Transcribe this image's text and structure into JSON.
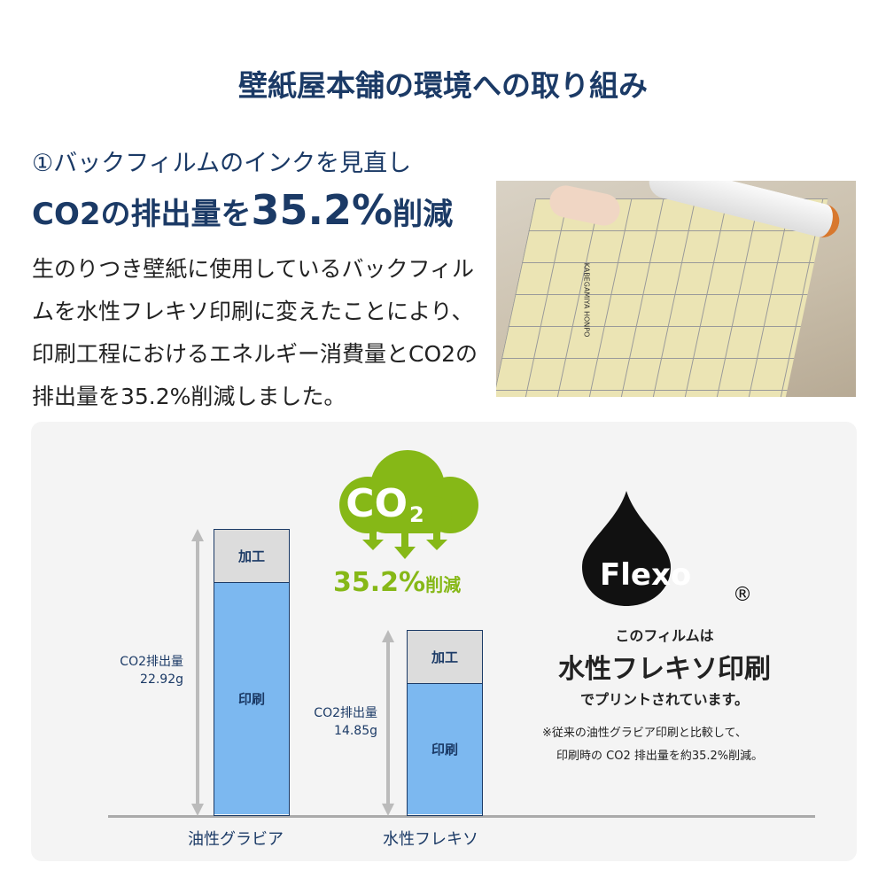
{
  "title": "壁紙屋本舗の環境への取り組み",
  "subtitle": "①バックフィルムのインクを見直し",
  "headline": {
    "pre": "CO2の排出量を",
    "value": "35.2%",
    "post": "削減"
  },
  "body": "生のりつき壁紙に使用しているバックフィルムを水性フレキソ印刷に変えたことにより、印刷工程におけるエネルギー消費量とCO2の排出量を35.2%削減しました。",
  "photo": {
    "print_text": "KABEGAMIYA HONPO"
  },
  "cloud": {
    "label": "CO",
    "sub": "2",
    "reduction": "35.2%",
    "reduction_suffix": "削減"
  },
  "chart_data": {
    "type": "bar",
    "categories": [
      "油性グラビア",
      "水性フレキソ"
    ],
    "values": [
      22.92,
      14.85
    ],
    "unit": "g",
    "value_labels": [
      "CO2排出量\n22.92g",
      "CO2排出量\n14.85g"
    ],
    "segments": [
      "印刷",
      "加工"
    ]
  },
  "labels": {
    "bar1_val_l1": "CO2排出量",
    "bar1_val_l2": "22.92g",
    "bar2_val_l1": "CO2排出量",
    "bar2_val_l2": "14.85g",
    "seg_top": "加工",
    "seg_bot": "印刷",
    "cat1": "油性グラビア",
    "cat2": "水性フレキソ"
  },
  "flexo": {
    "logo": "Flexo",
    "reg": "®",
    "line1": "このフィルムは",
    "line2": "水性フレキソ印刷",
    "line3": "でプリントされています。",
    "note1": "※従来の油性グラビア印刷と比較して、",
    "note2": "印刷時の CO2 排出量を約35.2%削減。"
  },
  "colors": {
    "navy": "#1b3a66",
    "green": "#86b817",
    "bar_blue": "#7cb8f0",
    "bar_gray": "#dcdcdc"
  }
}
